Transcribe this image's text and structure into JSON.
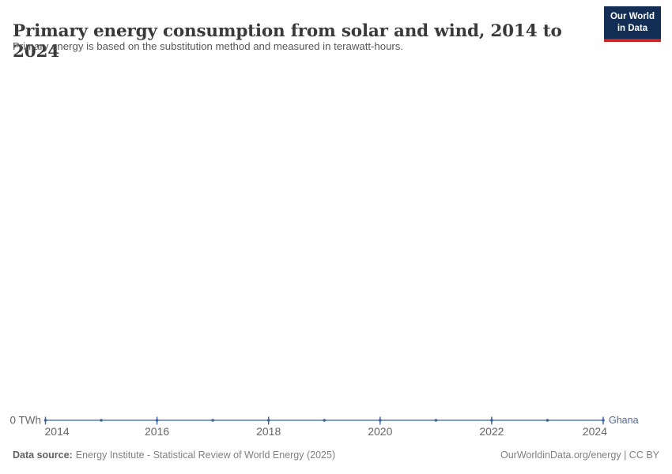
{
  "header": {
    "title": "Primary energy consumption from solar and wind, 2014 to 2024",
    "subtitle": "Primary energy is based on the substitution method and measured in terawatt-hours.",
    "logo_line1": "Our World",
    "logo_line2": "in Data"
  },
  "footer": {
    "source_label": "Data source:",
    "source_text": "Energy Institute - Statistical Review of World Energy (2025)",
    "right_text": "OurWorldinData.org/energy | CC BY"
  },
  "colors": {
    "line": "#5b7cb4",
    "marker": "#3f619c",
    "entity_label": "#4c6a9c",
    "axis_text": "#666666",
    "logo_navy": "#132e54",
    "logo_red": "#cb2323"
  },
  "chart_data": {
    "type": "line",
    "title": "Primary energy consumption from solar and wind, 2014 to 2024",
    "subtitle": "Primary energy is based on the substitution method and measured in terawatt-hours.",
    "unit": "TWh",
    "x": [
      2014,
      2015,
      2016,
      2017,
      2018,
      2019,
      2020,
      2021,
      2022,
      2023,
      2024
    ],
    "series": [
      {
        "name": "Ghana",
        "values": [
          0,
          0,
          0,
          0,
          0,
          0,
          0,
          0,
          0,
          0,
          0
        ]
      }
    ],
    "x_ticks": [
      2014,
      2016,
      2018,
      2020,
      2022,
      2024
    ],
    "y_axis_label": "0 TWh",
    "ylim": [
      0,
      0
    ],
    "xlim": [
      2014,
      2024
    ],
    "grid": false,
    "legend_position": "line-end"
  }
}
